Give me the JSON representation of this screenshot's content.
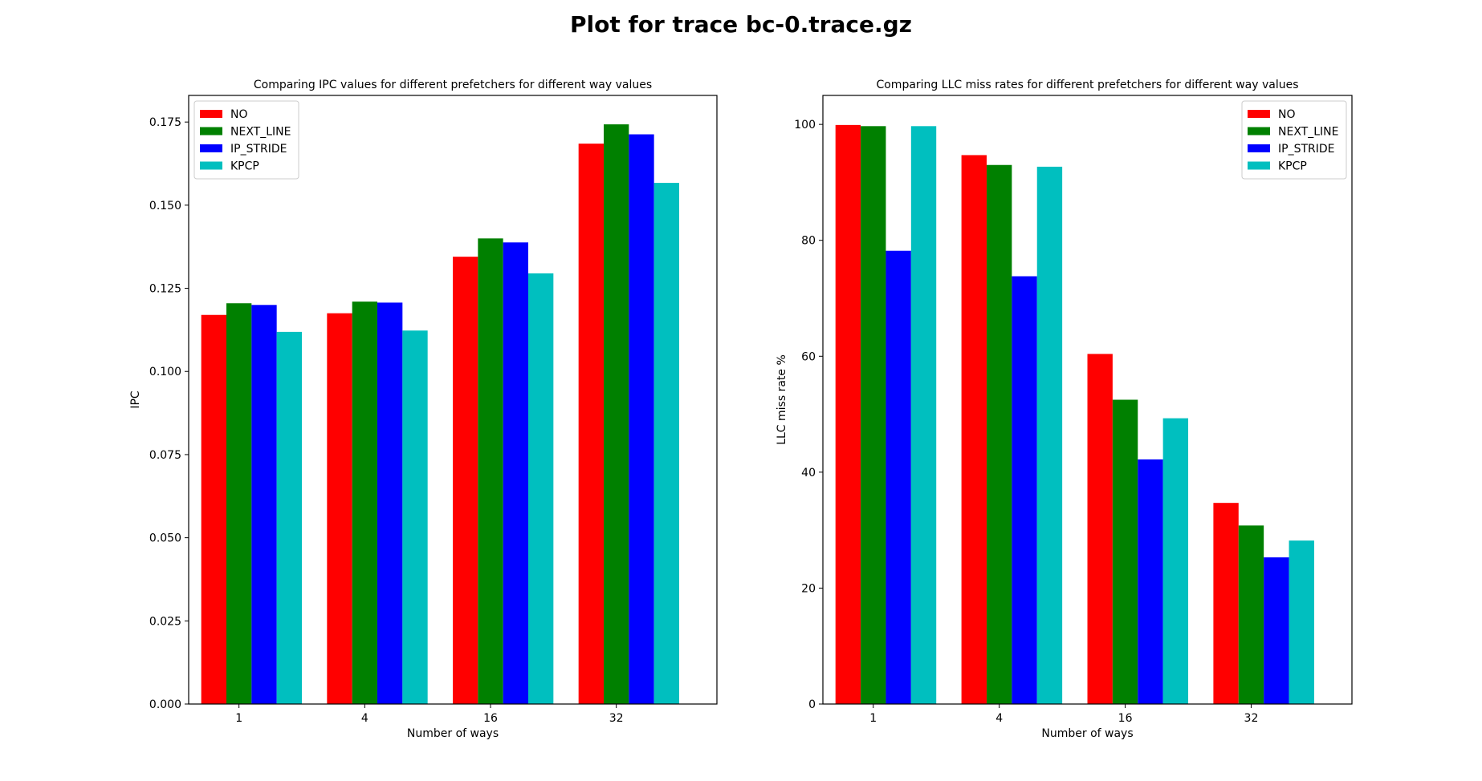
{
  "figure": {
    "title": "Plot for trace bc-0.trace.gz"
  },
  "chart_data": [
    {
      "type": "bar",
      "title": "Comparing IPC values for different prefetchers for different way values",
      "xlabel": "Number of ways",
      "ylabel": "IPC",
      "categories": [
        "1",
        "4",
        "16",
        "32"
      ],
      "ylim": [
        0,
        0.183
      ],
      "yticks": [
        0.0,
        0.025,
        0.05,
        0.075,
        0.1,
        0.125,
        0.15,
        0.175
      ],
      "ytick_labels": [
        "0.000",
        "0.025",
        "0.050",
        "0.075",
        "0.100",
        "0.125",
        "0.150",
        "0.175"
      ],
      "grid": false,
      "legend_position": "upper-left",
      "series": [
        {
          "name": "NO",
          "color": "#ff0000",
          "values": [
            0.117,
            0.1175,
            0.1345,
            0.1685
          ]
        },
        {
          "name": "NEXT_LINE",
          "color": "#008000",
          "values": [
            0.1205,
            0.121,
            0.14,
            0.1743
          ]
        },
        {
          "name": "IP_STRIDE",
          "color": "#0000ff",
          "values": [
            0.12,
            0.1207,
            0.1388,
            0.1713
          ]
        },
        {
          "name": "KPCP",
          "color": "#00bfbf",
          "values": [
            0.1119,
            0.1123,
            0.1295,
            0.1567
          ]
        }
      ]
    },
    {
      "type": "bar",
      "title": "Comparing LLC miss rates for different prefetchers for different way values",
      "xlabel": "Number of ways",
      "ylabel": "LLC miss rate %",
      "categories": [
        "1",
        "4",
        "16",
        "32"
      ],
      "ylim": [
        0,
        105
      ],
      "yticks": [
        0,
        20,
        40,
        60,
        80,
        100
      ],
      "ytick_labels": [
        "0",
        "20",
        "40",
        "60",
        "80",
        "100"
      ],
      "grid": false,
      "legend_position": "upper-right",
      "series": [
        {
          "name": "NO",
          "color": "#ff0000",
          "values": [
            99.9,
            94.7,
            60.4,
            34.7
          ]
        },
        {
          "name": "NEXT_LINE",
          "color": "#008000",
          "values": [
            99.7,
            93.0,
            52.5,
            30.8
          ]
        },
        {
          "name": "IP_STRIDE",
          "color": "#0000ff",
          "values": [
            78.2,
            73.8,
            42.2,
            25.3
          ]
        },
        {
          "name": "KPCP",
          "color": "#00bfbf",
          "values": [
            99.7,
            92.7,
            49.3,
            28.2
          ]
        }
      ]
    }
  ]
}
